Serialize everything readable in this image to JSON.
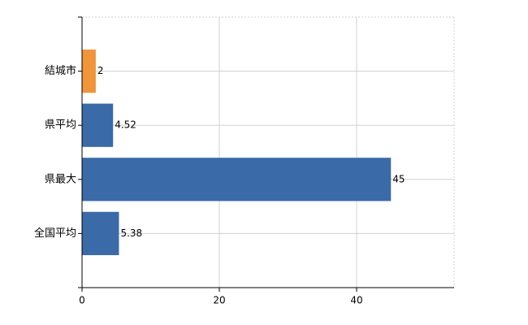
{
  "chart_data": {
    "type": "barh",
    "categories": [
      "結城市",
      "県平均",
      "県最大",
      "全国平均"
    ],
    "values": [
      2,
      4.52,
      45,
      5.38
    ],
    "colors": [
      "#f0953a",
      "#3a6aa8",
      "#3a6aa8",
      "#3a6aa8"
    ],
    "xlim": [
      0,
      54.2
    ],
    "xticks": [
      0,
      20,
      40
    ],
    "grid": true
  }
}
